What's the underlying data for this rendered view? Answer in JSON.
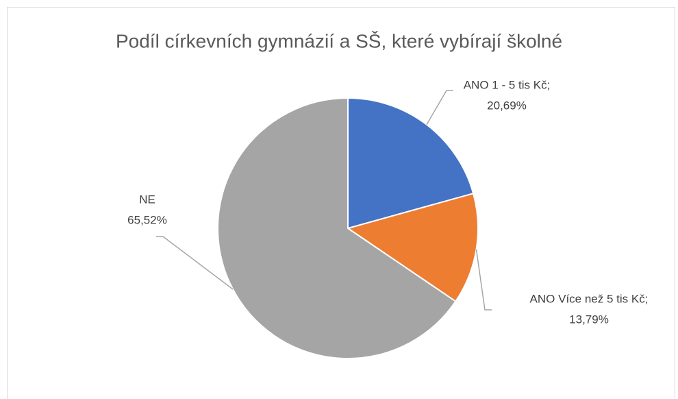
{
  "chart_data": {
    "type": "pie",
    "title": "Podíl církevních gymnázií a SŠ, které vybírají školné",
    "categories": [
      "ANO 1 - 5 tis Kč;",
      "ANO Více než 5 tis Kč;",
      "NE"
    ],
    "values": [
      20.69,
      13.79,
      65.52
    ],
    "value_labels": [
      "20,69%",
      "13,79%",
      "65,52%"
    ],
    "colors": [
      "#4472c4",
      "#ed7d31",
      "#a5a5a5"
    ]
  }
}
